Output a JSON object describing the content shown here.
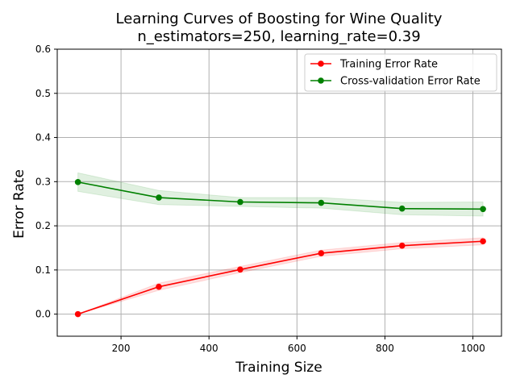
{
  "chart_data": {
    "type": "line",
    "title": "Learning Curves of Boosting for Wine Quality",
    "subtitle": "n_estimators=250, learning_rate=0.39",
    "xlabel": "Training Size",
    "ylabel": "Error Rate",
    "xlim": [
      55,
      1065
    ],
    "ylim": [
      -0.05,
      0.6
    ],
    "xticks": [
      200,
      400,
      600,
      800,
      1000
    ],
    "yticks": [
      0.0,
      0.1,
      0.2,
      0.3,
      0.4,
      0.5,
      0.6
    ],
    "ytick_labels": [
      "0.0",
      "0.1",
      "0.2",
      "0.3",
      "0.4",
      "0.5",
      "0.6"
    ],
    "grid": true,
    "legend_position": "top-right",
    "x": [
      102,
      286,
      471,
      655,
      839,
      1023
    ],
    "series": [
      {
        "name": "Training Error Rate",
        "color": "#ff0000",
        "values": [
          0.0,
          0.062,
          0.101,
          0.138,
          0.155,
          0.165
        ],
        "band_low": [
          0.0,
          0.054,
          0.094,
          0.131,
          0.148,
          0.157
        ],
        "band_high": [
          0.0,
          0.07,
          0.108,
          0.145,
          0.162,
          0.173
        ]
      },
      {
        "name": "Cross-validation Error Rate",
        "color": "#008000",
        "values": [
          0.299,
          0.264,
          0.254,
          0.252,
          0.239,
          0.238
        ],
        "band_low": [
          0.278,
          0.248,
          0.244,
          0.24,
          0.225,
          0.222
        ],
        "band_high": [
          0.32,
          0.28,
          0.264,
          0.264,
          0.253,
          0.254
        ]
      }
    ]
  }
}
